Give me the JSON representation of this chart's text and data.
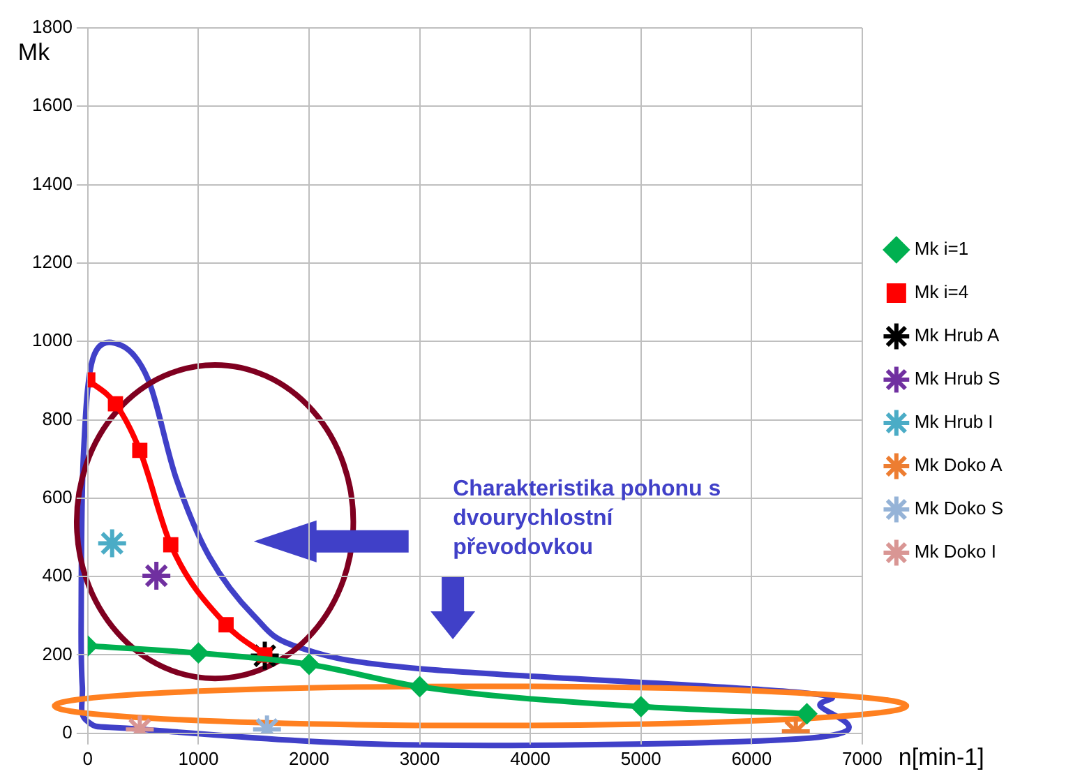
{
  "chart_data": {
    "type": "line",
    "xlabel": "n[min-1]",
    "ylabel": "Mk",
    "xlim": [
      0,
      7000
    ],
    "xticks": [
      0,
      1000,
      2000,
      3000,
      4000,
      5000,
      6000,
      7000
    ],
    "ylim": [
      0,
      1800
    ],
    "yticks": [
      0,
      200,
      400,
      600,
      800,
      1000,
      1200,
      1400,
      1600,
      1800
    ],
    "grid": true,
    "legend": "right",
    "annotations": [
      "Charakteristika pohonu s dvourychlostní převodovkou"
    ],
    "series": [
      {
        "name": "Mk i=1",
        "type": "line",
        "marker": "diamond",
        "color": "#00b050",
        "x": [
          0,
          1000,
          2000,
          3000,
          5000,
          6500
        ],
        "values": [
          223,
          205,
          176,
          119,
          68,
          50
        ]
      },
      {
        "name": "Mk i=4",
        "type": "line",
        "marker": "square",
        "color": "#ff0000",
        "x": [
          0,
          250,
          470,
          750,
          1250,
          1600
        ],
        "values": [
          902,
          841,
          722,
          481,
          277,
          200
        ]
      },
      {
        "name": "Mk Hrub A",
        "type": "scatter",
        "color": "#000000",
        "x": [
          1600
        ],
        "values": [
          198
        ]
      },
      {
        "name": "Mk Hrub S",
        "type": "scatter",
        "color": "#7030a0",
        "x": [
          620
        ],
        "values": [
          402
        ]
      },
      {
        "name": "Mk Hrub I",
        "type": "scatter",
        "color": "#4bacc6",
        "x": [
          220
        ],
        "values": [
          485
        ]
      },
      {
        "name": "Mk Doko A",
        "type": "scatter",
        "color": "#ed7d31",
        "x": [
          6400
        ],
        "values": [
          5
        ]
      },
      {
        "name": "Mk Doko S",
        "type": "scatter",
        "color": "#95b3d7",
        "x": [
          1620
        ],
        "values": [
          10
        ]
      },
      {
        "name": "Mk Doko I",
        "type": "scatter",
        "color": "#d99694",
        "x": [
          470
        ],
        "values": [
          10
        ]
      }
    ]
  }
}
